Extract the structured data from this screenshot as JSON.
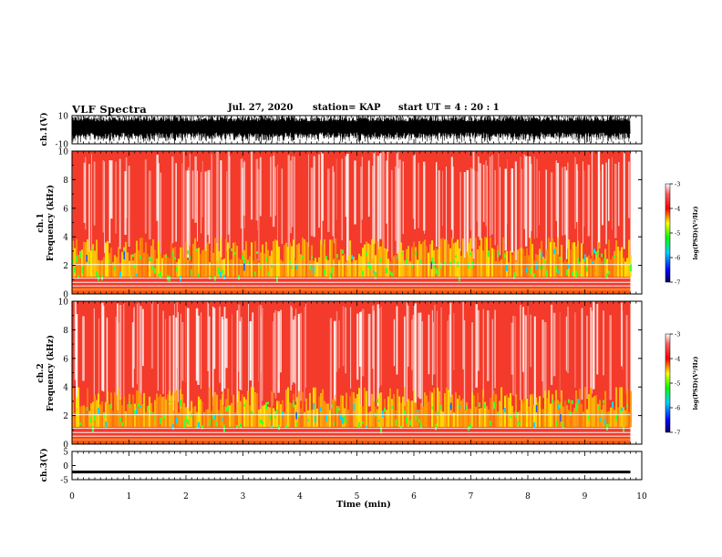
{
  "header": {
    "title": "VLF Spectra",
    "date": "Jul. 27, 2020",
    "station": "station= KAP",
    "start": "start  UT =   4 : 20 : 1"
  },
  "colors": {
    "spectrogram_gradient": [
      "#000080",
      "#0000ff",
      "#00c8ff",
      "#00ff00",
      "#ffff00",
      "#ff8000",
      "#ff0000",
      "#ffffff"
    ],
    "line": "#000000"
  },
  "chart_data": [
    {
      "type": "line",
      "name": "ch1-waveform",
      "ylabel": "ch.1(V)",
      "ylim": [
        -10,
        10
      ],
      "yticks": [
        "10",
        "-10"
      ],
      "xlim": [
        0,
        10
      ],
      "description_note": ""
    },
    {
      "type": "heatmap",
      "name": "ch1-spectrogram",
      "ylabel": "ch.1\nFrequency (kHz)",
      "ylabel_lines": [
        "ch.1",
        "Frequency (kHz)"
      ],
      "ylim": [
        0,
        10
      ],
      "yticks": [
        "0",
        "2",
        "4",
        "6",
        "8",
        "10"
      ],
      "xlim": [
        0,
        9.8
      ],
      "colorbar": {
        "label": "log(PSD)(V²/Hz)",
        "range": [
          -7,
          -3
        ],
        "ticks": [
          "-3",
          "-4",
          "-5",
          "-6",
          "-7"
        ]
      }
    },
    {
      "type": "heatmap",
      "name": "ch2-spectrogram",
      "ylabel_lines": [
        "ch.2",
        "Frequency (kHz)"
      ],
      "ylim": [
        0,
        10
      ],
      "yticks": [
        "0",
        "2",
        "4",
        "6",
        "8",
        "10"
      ],
      "xlim": [
        0,
        9.8
      ],
      "colorbar": {
        "label": "log(PSD)(V²/Hz)",
        "range": [
          -7,
          -3
        ],
        "ticks": [
          "-3",
          "-4",
          "-5",
          "-6",
          "-7"
        ]
      }
    },
    {
      "type": "line",
      "name": "ch3-waveform",
      "ylabel": "ch.3(V)",
      "ylim": [
        -5,
        5
      ],
      "yticks": [
        "5",
        "0",
        "-5"
      ],
      "x": [
        0,
        9.8
      ],
      "values": [
        -2.3,
        -2.3
      ],
      "xlim": [
        0,
        10
      ]
    }
  ],
  "xaxis": {
    "label": "Time (min)",
    "ticks": [
      "0",
      "1",
      "2",
      "3",
      "4",
      "5",
      "6",
      "7",
      "8",
      "9",
      "10"
    ],
    "range": [
      0,
      10
    ]
  }
}
